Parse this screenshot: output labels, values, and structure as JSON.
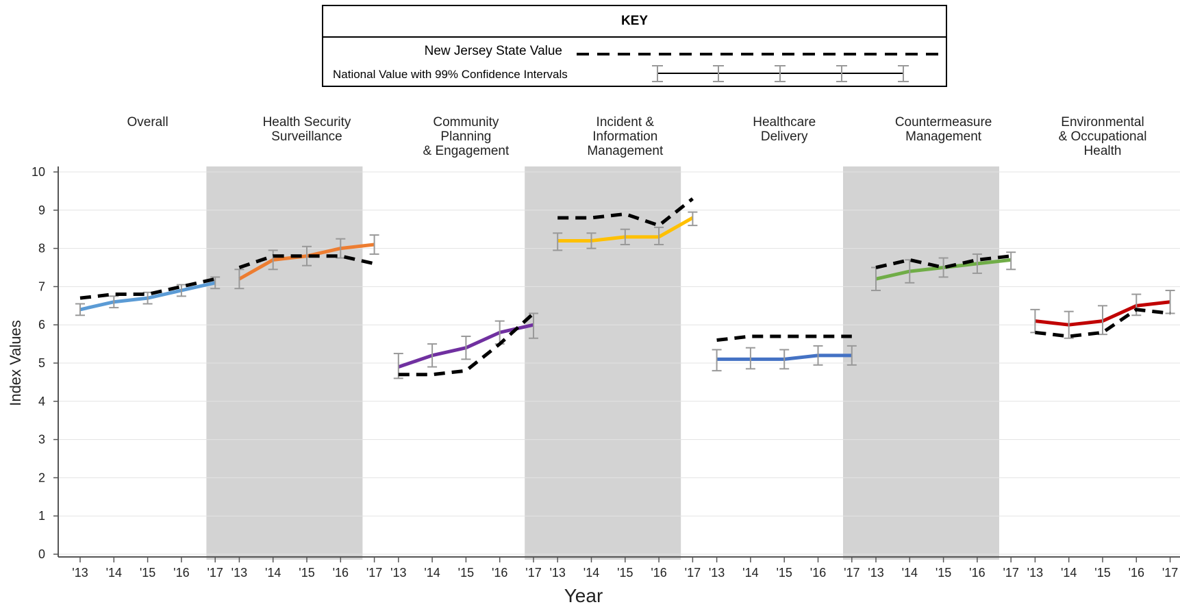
{
  "key": {
    "title": "KEY",
    "state_label": "New Jersey State Value",
    "national_label": "National Value with 99% Confidence Intervals"
  },
  "chart_data": {
    "type": "line",
    "ylabel": "Index Values",
    "xlabel": "Year",
    "ylim": [
      0,
      10
    ],
    "yticks": [
      0,
      1,
      2,
      3,
      4,
      5,
      6,
      7,
      8,
      9,
      10
    ],
    "x": [
      "'13",
      "'14",
      "'15",
      "'16",
      "'17"
    ],
    "grid": true,
    "panels": [
      {
        "title": [
          "Overall"
        ],
        "shaded": false,
        "color": "#5b9bd5",
        "national": [
          6.4,
          6.6,
          6.7,
          6.9,
          7.1
        ],
        "ci": [
          [
            6.25,
            6.55
          ],
          [
            6.45,
            6.75
          ],
          [
            6.55,
            6.85
          ],
          [
            6.75,
            7.05
          ],
          [
            6.95,
            7.25
          ]
        ],
        "state": [
          6.7,
          6.8,
          6.8,
          7.0,
          7.2
        ]
      },
      {
        "title": [
          "Health Security",
          "Surveillance"
        ],
        "shaded": true,
        "color": "#ed7d31",
        "national": [
          7.2,
          7.7,
          7.8,
          8.0,
          8.1
        ],
        "ci": [
          [
            6.95,
            7.45
          ],
          [
            7.45,
            7.95
          ],
          [
            7.55,
            8.05
          ],
          [
            7.75,
            8.25
          ],
          [
            7.85,
            8.35
          ]
        ],
        "state": [
          7.5,
          7.8,
          7.8,
          7.8,
          7.6
        ]
      },
      {
        "title": [
          "Community",
          "Planning",
          "& Engagement"
        ],
        "shaded": false,
        "color": "#7030a0",
        "national": [
          4.9,
          5.2,
          5.4,
          5.8,
          6.0
        ],
        "ci": [
          [
            4.6,
            5.25
          ],
          [
            4.9,
            5.5
          ],
          [
            5.1,
            5.7
          ],
          [
            5.5,
            6.1
          ],
          [
            5.65,
            6.3
          ]
        ],
        "state": [
          4.7,
          4.7,
          4.8,
          5.5,
          6.3
        ]
      },
      {
        "title": [
          "Incident &",
          "Information",
          "Management"
        ],
        "shaded": true,
        "color": "#ffc000",
        "national": [
          8.2,
          8.2,
          8.3,
          8.3,
          8.8
        ],
        "ci": [
          [
            7.95,
            8.4
          ],
          [
            8.0,
            8.4
          ],
          [
            8.1,
            8.5
          ],
          [
            8.1,
            8.55
          ],
          [
            8.6,
            8.95
          ]
        ],
        "state": [
          8.8,
          8.8,
          8.9,
          8.6,
          9.3
        ]
      },
      {
        "title": [
          "Healthcare",
          "Delivery"
        ],
        "shaded": false,
        "color": "#4472c4",
        "national": [
          5.1,
          5.1,
          5.1,
          5.2,
          5.2
        ],
        "ci": [
          [
            4.8,
            5.35
          ],
          [
            4.85,
            5.4
          ],
          [
            4.85,
            5.35
          ],
          [
            4.95,
            5.45
          ],
          [
            4.95,
            5.45
          ]
        ],
        "state": [
          5.6,
          5.7,
          5.7,
          5.7,
          5.7
        ]
      },
      {
        "title": [
          "Countermeasure",
          "Management"
        ],
        "shaded": true,
        "color": "#70ad47",
        "national": [
          7.2,
          7.4,
          7.5,
          7.6,
          7.7
        ],
        "ci": [
          [
            6.9,
            7.5
          ],
          [
            7.1,
            7.7
          ],
          [
            7.25,
            7.75
          ],
          [
            7.35,
            7.85
          ],
          [
            7.45,
            7.9
          ]
        ],
        "state": [
          7.5,
          7.7,
          7.5,
          7.7,
          7.8
        ]
      },
      {
        "title": [
          "Environmental",
          "& Occupational",
          "Health"
        ],
        "shaded": false,
        "color": "#c00000",
        "national": [
          6.1,
          6.0,
          6.1,
          6.5,
          6.6
        ],
        "ci": [
          [
            5.8,
            6.4
          ],
          [
            5.65,
            6.35
          ],
          [
            5.75,
            6.5
          ],
          [
            6.25,
            6.8
          ],
          [
            6.3,
            6.9
          ]
        ],
        "state": [
          5.8,
          5.7,
          5.8,
          6.4,
          6.3
        ]
      }
    ]
  }
}
